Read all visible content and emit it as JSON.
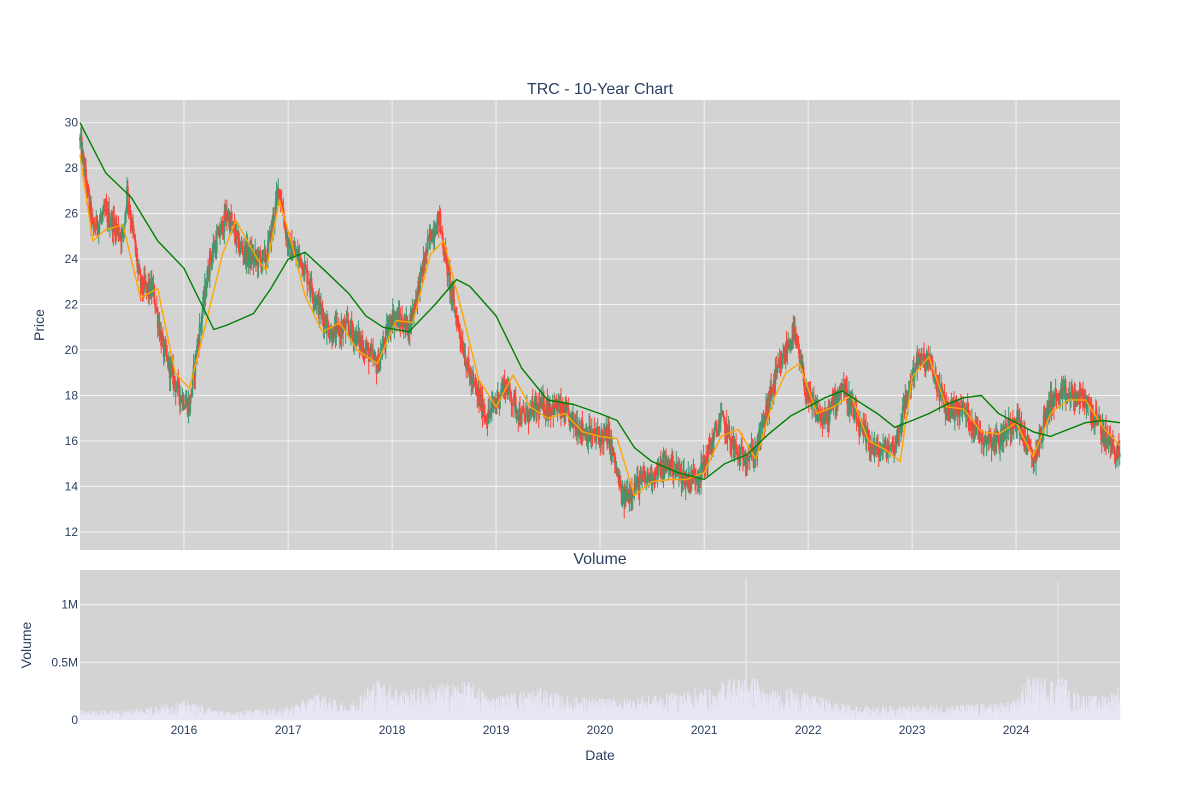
{
  "colors": {
    "plot_bg": "#d3d3d3",
    "grid": "#f2f2f2",
    "text": "#2a3f5f",
    "up": "#3d9970",
    "down": "#ff4136",
    "ma_fast": "#ffa500",
    "ma_slow": "#008000",
    "volume": "#e6e6f5"
  },
  "chart_data": [
    {
      "type": "candlestick",
      "title": "TRC - 10-Year Chart",
      "xlabel": "",
      "ylabel": "Price",
      "xlim": [
        "2015-01-01",
        "2024-12-31"
      ],
      "ylim": [
        11.2,
        31.0
      ],
      "yticks": [
        12,
        14,
        16,
        18,
        20,
        22,
        24,
        26,
        28,
        30
      ],
      "grid": true,
      "legend": "none",
      "series": [
        {
          "kind": "ohlc_close_path",
          "dates": [
            "2015-01-01",
            "2015-02-15",
            "2015-04-01",
            "2015-06-01",
            "2015-06-15",
            "2015-08-01",
            "2015-09-15",
            "2015-10-20",
            "2015-12-15",
            "2016-01-20",
            "2016-02-15",
            "2016-04-01",
            "2016-06-01",
            "2016-07-15",
            "2016-09-01",
            "2016-10-15",
            "2016-12-01",
            "2017-01-01",
            "2017-02-15",
            "2017-04-15",
            "2017-06-01",
            "2017-08-01",
            "2017-10-01",
            "2017-11-10",
            "2018-01-01",
            "2018-03-01",
            "2018-05-15",
            "2018-06-15",
            "2018-08-01",
            "2018-10-01",
            "2018-12-01",
            "2019-02-01",
            "2019-04-01",
            "2019-06-01",
            "2019-08-01",
            "2019-10-01",
            "2019-12-01",
            "2020-02-01",
            "2020-03-20",
            "2020-05-01",
            "2020-07-01",
            "2020-09-01",
            "2020-11-01",
            "2020-12-20",
            "2021-03-01",
            "2021-05-01",
            "2021-07-01",
            "2021-09-01",
            "2021-11-10",
            "2022-01-01",
            "2022-03-01",
            "2022-05-01",
            "2022-07-01",
            "2022-09-01",
            "2022-11-01",
            "2023-01-15",
            "2023-03-01",
            "2023-05-01",
            "2023-07-01",
            "2023-09-01",
            "2023-11-01",
            "2024-01-01",
            "2024-03-01",
            "2024-05-01",
            "2024-07-01",
            "2024-09-01",
            "2024-11-01",
            "2024-12-31"
          ],
          "close": [
            29.2,
            25.3,
            26.0,
            25.0,
            27.0,
            22.8,
            22.6,
            20.0,
            18.1,
            17.5,
            20.0,
            24.0,
            26.0,
            24.5,
            24.0,
            24.0,
            27.2,
            24.5,
            24.0,
            22.0,
            20.7,
            21.0,
            20.0,
            19.3,
            21.5,
            21.0,
            25.0,
            25.8,
            22.2,
            18.8,
            17.0,
            18.5,
            17.0,
            17.5,
            17.5,
            16.8,
            16.2,
            16.2,
            13.4,
            14.0,
            14.5,
            15.0,
            14.3,
            14.6,
            17.0,
            15.3,
            15.5,
            18.5,
            20.8,
            17.8,
            16.8,
            18.5,
            16.5,
            15.5,
            15.8,
            19.5,
            19.5,
            17.4,
            17.4,
            16.2,
            16.0,
            17.1,
            15.1,
            17.8,
            18.0,
            17.8,
            16.3,
            15.3
          ]
        },
        {
          "name": "",
          "kind": "moving_average_fast",
          "dates": [
            "2015-01-01",
            "2015-02-15",
            "2015-04-01",
            "2015-06-01",
            "2015-08-01",
            "2015-10-01",
            "2015-12-01",
            "2016-01-20",
            "2016-03-15",
            "2016-05-15",
            "2016-07-01",
            "2016-09-15",
            "2016-10-15",
            "2016-12-01",
            "2017-01-15",
            "2017-03-01",
            "2017-05-01",
            "2017-07-01",
            "2017-09-01",
            "2017-11-10",
            "2018-01-15",
            "2018-03-15",
            "2018-05-15",
            "2018-07-01",
            "2018-09-01",
            "2018-11-01",
            "2019-01-01",
            "2019-03-01",
            "2019-05-01",
            "2019-07-01",
            "2019-09-01",
            "2019-11-01",
            "2020-01-01",
            "2020-03-01",
            "2020-05-01",
            "2020-07-01",
            "2020-09-01",
            "2020-11-01",
            "2021-01-01",
            "2021-03-01",
            "2021-05-01",
            "2021-07-01",
            "2021-09-01",
            "2021-10-15",
            "2021-12-01",
            "2022-02-01",
            "2022-04-01",
            "2022-06-01",
            "2022-08-01",
            "2022-10-01",
            "2022-11-20",
            "2023-01-01",
            "2023-03-01",
            "2023-05-01",
            "2023-07-01",
            "2023-09-01",
            "2023-11-01",
            "2024-01-01",
            "2024-03-01",
            "2024-05-01",
            "2024-07-01",
            "2024-09-01",
            "2024-11-01",
            "2024-12-31"
          ],
          "values": [
            28.6,
            24.8,
            25.3,
            25.5,
            22.3,
            22.7,
            19.0,
            18.3,
            21.0,
            24.2,
            25.7,
            24.0,
            23.5,
            26.6,
            24.6,
            22.4,
            20.8,
            21.2,
            20.0,
            19.4,
            21.3,
            21.2,
            24.2,
            24.8,
            21.8,
            18.7,
            17.5,
            18.9,
            17.5,
            17.0,
            17.2,
            16.4,
            16.2,
            16.1,
            13.6,
            14.2,
            14.3,
            14.3,
            14.6,
            16.2,
            16.5,
            15.2,
            17.8,
            19.0,
            19.4,
            17.2,
            17.5,
            18.0,
            16.0,
            15.6,
            15.1,
            18.8,
            19.7,
            17.5,
            17.4,
            16.4,
            16.3,
            16.8,
            15.3,
            17.2,
            17.8,
            17.8,
            16.6,
            15.8
          ]
        },
        {
          "name": "",
          "kind": "moving_average_slow",
          "dates": [
            "2015-01-01",
            "2015-04-01",
            "2015-07-01",
            "2015-10-01",
            "2016-01-01",
            "2016-04-15",
            "2016-06-01",
            "2016-09-01",
            "2016-11-01",
            "2017-01-01",
            "2017-03-01",
            "2017-05-01",
            "2017-08-01",
            "2017-10-01",
            "2017-12-01",
            "2018-03-01",
            "2018-06-01",
            "2018-08-15",
            "2018-10-01",
            "2019-01-01",
            "2019-04-01",
            "2019-07-01",
            "2019-10-01",
            "2020-01-01",
            "2020-03-01",
            "2020-05-01",
            "2020-07-01",
            "2020-10-01",
            "2021-01-01",
            "2021-03-15",
            "2021-06-01",
            "2021-08-15",
            "2021-11-01",
            "2022-01-01",
            "2022-03-01",
            "2022-05-01",
            "2022-07-01",
            "2022-09-01",
            "2022-11-01",
            "2023-01-01",
            "2023-03-01",
            "2023-05-01",
            "2023-07-01",
            "2023-09-01",
            "2023-11-01",
            "2024-01-01",
            "2024-03-01",
            "2024-05-01",
            "2024-07-01",
            "2024-09-01",
            "2024-11-01",
            "2024-12-31"
          ],
          "values": [
            30.0,
            27.8,
            26.7,
            24.8,
            23.6,
            20.9,
            21.1,
            21.6,
            22.7,
            24.0,
            24.3,
            23.6,
            22.5,
            21.5,
            21.0,
            20.8,
            22.0,
            23.1,
            22.8,
            21.5,
            19.2,
            17.8,
            17.6,
            17.2,
            16.9,
            15.7,
            15.1,
            14.6,
            14.3,
            15.0,
            15.4,
            16.3,
            17.1,
            17.5,
            17.9,
            18.2,
            17.7,
            17.2,
            16.6,
            16.9,
            17.2,
            17.6,
            17.9,
            18.0,
            17.2,
            16.8,
            16.4,
            16.2,
            16.5,
            16.8,
            16.9,
            16.8
          ]
        }
      ]
    },
    {
      "type": "bar",
      "title": "Volume",
      "xlabel": "Date",
      "ylabel": "Volume",
      "xlim": [
        "2015-01-01",
        "2024-12-31"
      ],
      "ylim": [
        0,
        1300000
      ],
      "yticks": [
        0,
        500000,
        1000000
      ],
      "ytick_labels": [
        "0",
        "0.5M",
        "1M"
      ],
      "xticks": [
        "2016-01-01",
        "2017-01-01",
        "2018-01-01",
        "2019-01-01",
        "2020-01-01",
        "2021-01-01",
        "2022-01-01",
        "2023-01-01",
        "2024-01-01"
      ],
      "xtick_labels": [
        "2016",
        "2017",
        "2018",
        "2019",
        "2020",
        "2021",
        "2022",
        "2023",
        "2024"
      ],
      "grid": true,
      "series": [
        {
          "name": "",
          "kind": "volume",
          "dates": [
            "2015-06-01",
            "2016-01-01",
            "2016-06-01",
            "2017-01-01",
            "2017-04-15",
            "2017-08-01",
            "2017-11-01",
            "2018-03-01",
            "2018-06-15",
            "2018-10-01",
            "2018-12-15",
            "2019-06-01",
            "2019-09-15",
            "2020-03-01",
            "2020-08-15",
            "2021-01-01",
            "2021-02-20",
            "2021-05-28",
            "2021-07-20",
            "2021-11-01",
            "2022-06-01",
            "2022-10-01",
            "2023-04-01",
            "2023-09-01",
            "2024-01-01",
            "2024-05-28",
            "2024-07-01",
            "2024-10-01",
            "2024-12-01",
            "2024-12-28"
          ],
          "values": [
            90000,
            180000,
            80000,
            120000,
            250000,
            140000,
            380000,
            280000,
            340000,
            360000,
            220000,
            300000,
            220000,
            200000,
            240000,
            310000,
            240000,
            1230000,
            280000,
            290000,
            130000,
            130000,
            140000,
            150000,
            180000,
            1200000,
            280000,
            220000,
            260000,
            320000
          ]
        }
      ]
    }
  ]
}
